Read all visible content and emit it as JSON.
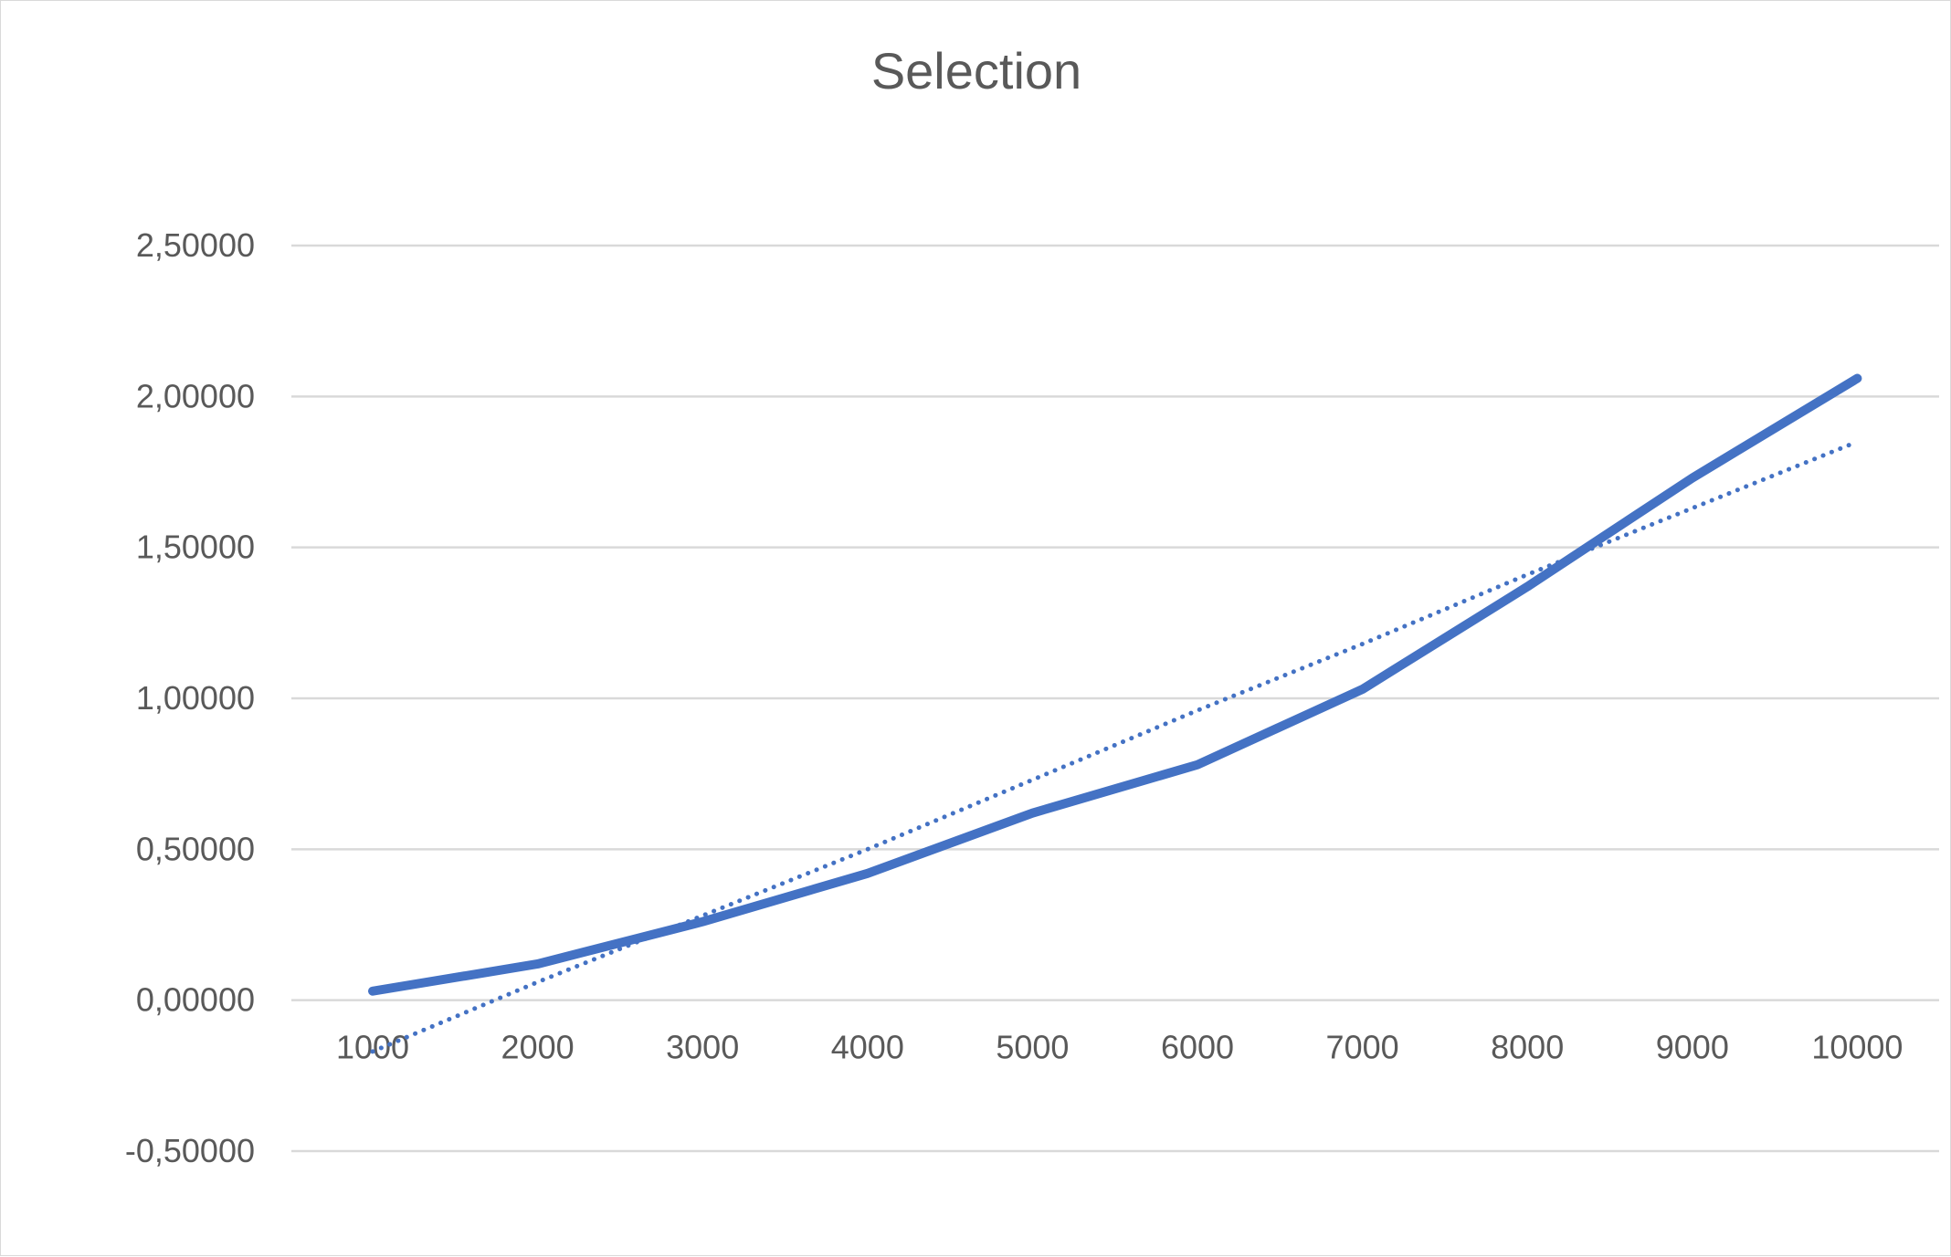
{
  "chart_data": {
    "type": "line",
    "title": "Selection",
    "xlabel": "",
    "ylabel": "",
    "categories": [
      "1000",
      "2000",
      "3000",
      "4000",
      "5000",
      "6000",
      "7000",
      "8000",
      "9000",
      "10000"
    ],
    "series": [
      {
        "values": [
          0.03,
          0.12,
          0.26,
          0.42,
          0.62,
          0.78,
          1.03,
          1.37,
          1.73,
          2.06
        ],
        "color": "#4472c4"
      }
    ],
    "trendline": {
      "type": "linear",
      "values": [
        -0.17,
        0.06,
        0.28,
        0.5,
        0.73,
        0.96,
        1.18,
        1.41,
        1.63,
        1.85
      ],
      "color": "#4472c4",
      "style": "dotted"
    },
    "ylim": [
      -0.5,
      2.5
    ],
    "yticks": [
      "-0,50000",
      "0,00000",
      "0,50000",
      "1,00000",
      "1,50000",
      "2,00000",
      "2,50000"
    ],
    "ytick_values": [
      -0.5,
      0,
      0.5,
      1,
      1.5,
      2,
      2.5
    ],
    "grid": true,
    "legend": "none"
  }
}
